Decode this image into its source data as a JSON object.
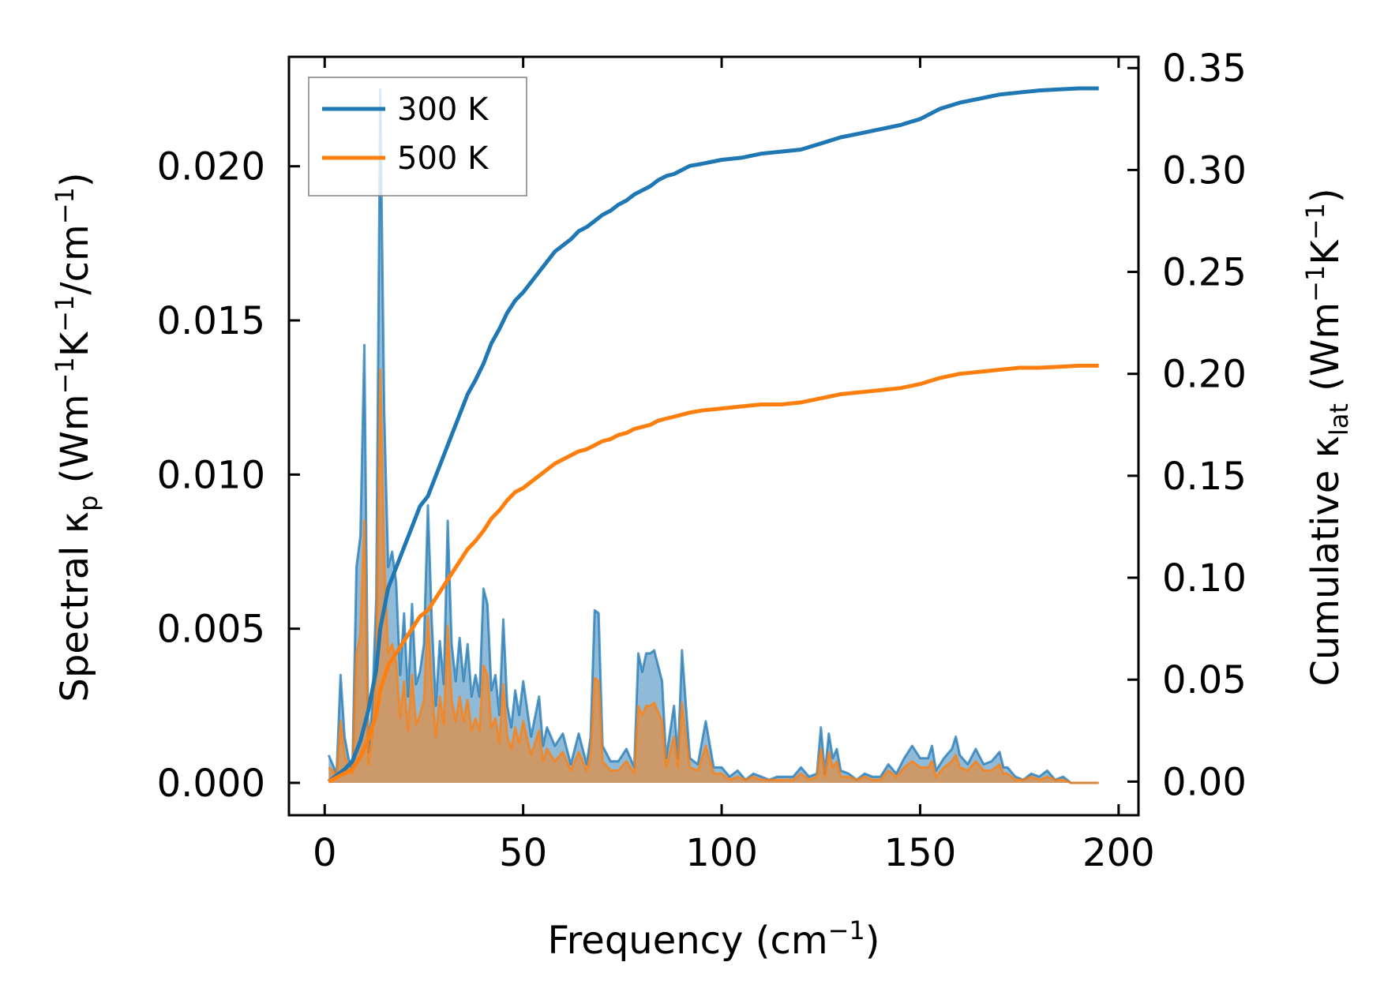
{
  "chart_data": {
    "type": "area",
    "title": "",
    "xlabel": "Frequency (cm",
    "xlabel_sup": "−1",
    "xlabel_end": ")",
    "ylabel_left": {
      "main": "Spectral κ",
      "sub": "p",
      "units_open": " (Wm",
      "sup1": "−1",
      "mid": "K",
      "sup2": "−1",
      "mid2": "/cm",
      "sup3": "−1",
      "close": ")"
    },
    "ylabel_right": {
      "main": "Cumulative κ",
      "sub": "lat",
      "units_open": " (Wm",
      "sup1": "−1",
      "mid": "K",
      "sup2": "−1",
      "close": ")"
    },
    "xlim": [
      -9,
      205
    ],
    "ylim_left": [
      -0.00105,
      0.02355
    ],
    "ylim_right": [
      -0.0165,
      0.3555
    ],
    "x_ticks": [
      0,
      50,
      100,
      150,
      200
    ],
    "x_tick_labels": [
      "0",
      "50",
      "100",
      "150",
      "200"
    ],
    "y_left_ticks": [
      0.0,
      0.005,
      0.01,
      0.015,
      0.02
    ],
    "y_left_tick_labels": [
      "0.000",
      "0.005",
      "0.010",
      "0.015",
      "0.020"
    ],
    "y_right_ticks": [
      0.0,
      0.05,
      0.1,
      0.15,
      0.2,
      0.25,
      0.3,
      0.35
    ],
    "y_right_tick_labels": [
      "0.00",
      "0.05",
      "0.10",
      "0.15",
      "0.20",
      "0.25",
      "0.30",
      "0.35"
    ],
    "grid": false,
    "legend_position": "top-left",
    "series": [
      {
        "name": "300 K",
        "color": "#1f77b4",
        "fill_color": "#1f77b4",
        "spectral": {
          "x": [
            1,
            2,
            3,
            4,
            5,
            6,
            7,
            8,
            9,
            10,
            11,
            12,
            13,
            14,
            15,
            16,
            17,
            18,
            19,
            20,
            21,
            22,
            23,
            24,
            25,
            26,
            27,
            28,
            29,
            30,
            31,
            32,
            33,
            34,
            35,
            36,
            37,
            38,
            39,
            40,
            41,
            42,
            43,
            44,
            45,
            46,
            47,
            48,
            49,
            50,
            52,
            54,
            55,
            56,
            58,
            60,
            62,
            64,
            66,
            67,
            68,
            69,
            70,
            72,
            74,
            76,
            78,
            79,
            80,
            81,
            82,
            83,
            84,
            85,
            86,
            88,
            89,
            90,
            91,
            92,
            94,
            96,
            98,
            100,
            102,
            104,
            106,
            108,
            110,
            112,
            114,
            116,
            118,
            120,
            122,
            124,
            125,
            126,
            127,
            128,
            129,
            130,
            132,
            134,
            136,
            138,
            140,
            142,
            144,
            146,
            148,
            150,
            152,
            153,
            154,
            156,
            158,
            159,
            160,
            162,
            164,
            166,
            168,
            170,
            171,
            172,
            174,
            176,
            178,
            180,
            182,
            184,
            186,
            188,
            190,
            192,
            195
          ],
          "y": [
            0.0009,
            0.0006,
            0.0003,
            0.0035,
            0.0015,
            0.0008,
            0.0004,
            0.007,
            0.008,
            0.0142,
            0.001,
            0.0025,
            0.006,
            0.0225,
            0.012,
            0.007,
            0.0075,
            0.0065,
            0.0035,
            0.0055,
            0.0028,
            0.0058,
            0.0032,
            0.0036,
            0.0045,
            0.009,
            0.0052,
            0.0025,
            0.0046,
            0.0032,
            0.0085,
            0.0045,
            0.0033,
            0.0047,
            0.0033,
            0.0045,
            0.0028,
            0.0035,
            0.0028,
            0.0063,
            0.0058,
            0.003,
            0.0035,
            0.0022,
            0.0053,
            0.0025,
            0.0018,
            0.003,
            0.0022,
            0.0033,
            0.0015,
            0.0028,
            0.0012,
            0.0018,
            0.0012,
            0.0016,
            0.0006,
            0.0016,
            0.0006,
            0.0015,
            0.0056,
            0.0055,
            0.0012,
            0.0007,
            0.0007,
            0.0011,
            0.0005,
            0.0042,
            0.0036,
            0.0042,
            0.0042,
            0.0043,
            0.0038,
            0.0033,
            0.0008,
            0.0025,
            0.0008,
            0.0043,
            0.0025,
            0.0008,
            0.0006,
            0.002,
            0.0005,
            0.0005,
            0.0002,
            0.0004,
            0.0001,
            0.0003,
            0.0002,
            0.0001,
            0.0002,
            0.0002,
            0.0002,
            0.0005,
            0.0002,
            0.0003,
            0.0018,
            0.0003,
            0.0016,
            0.0008,
            0.0011,
            0.0004,
            0.0003,
            0.0001,
            0.0003,
            0.0002,
            0.0002,
            0.0006,
            0.0003,
            0.0008,
            0.0012,
            0.0008,
            0.0008,
            0.0012,
            0.0004,
            0.0008,
            0.0011,
            0.0015,
            0.0009,
            0.0006,
            0.0011,
            0.0006,
            0.0007,
            0.001,
            0.0005,
            0.0005,
            0.0002,
            0.0001,
            0.0003,
            0.0002,
            0.0004,
            0.0001,
            0.0002,
            0.0,
            0.0,
            0.0,
            0.0
          ]
        },
        "cumulative": {
          "x": [
            1,
            3,
            5,
            7,
            9,
            11,
            12,
            13,
            14,
            15,
            16,
            18,
            20,
            22,
            24,
            26,
            28,
            30,
            32,
            34,
            36,
            38,
            40,
            42,
            44,
            46,
            48,
            50,
            52,
            54,
            56,
            58,
            60,
            62,
            64,
            66,
            68,
            70,
            72,
            74,
            76,
            78,
            80,
            82,
            84,
            86,
            88,
            90,
            92,
            95,
            100,
            105,
            110,
            115,
            120,
            125,
            130,
            135,
            140,
            145,
            150,
            155,
            160,
            165,
            170,
            175,
            180,
            185,
            190,
            195
          ],
          "y": [
            0.0,
            0.003,
            0.006,
            0.01,
            0.02,
            0.035,
            0.045,
            0.055,
            0.075,
            0.085,
            0.095,
            0.105,
            0.115,
            0.125,
            0.135,
            0.14,
            0.15,
            0.16,
            0.17,
            0.18,
            0.19,
            0.197,
            0.205,
            0.215,
            0.222,
            0.23,
            0.236,
            0.24,
            0.245,
            0.25,
            0.255,
            0.26,
            0.263,
            0.266,
            0.27,
            0.272,
            0.275,
            0.278,
            0.28,
            0.283,
            0.285,
            0.288,
            0.29,
            0.292,
            0.295,
            0.297,
            0.298,
            0.3,
            0.302,
            0.303,
            0.305,
            0.306,
            0.308,
            0.309,
            0.31,
            0.313,
            0.316,
            0.318,
            0.32,
            0.322,
            0.325,
            0.33,
            0.333,
            0.335,
            0.337,
            0.338,
            0.339,
            0.3395,
            0.34,
            0.34
          ]
        }
      },
      {
        "name": "500 K",
        "color": "#ff7f0e",
        "fill_color": "#ff7f0e",
        "spectral": {
          "x": [
            1,
            2,
            3,
            4,
            5,
            6,
            7,
            8,
            9,
            10,
            11,
            12,
            13,
            14,
            15,
            16,
            17,
            18,
            19,
            20,
            21,
            22,
            23,
            24,
            25,
            26,
            27,
            28,
            29,
            30,
            31,
            32,
            33,
            34,
            35,
            36,
            37,
            38,
            39,
            40,
            41,
            42,
            43,
            44,
            45,
            46,
            47,
            48,
            49,
            50,
            52,
            54,
            55,
            56,
            58,
            60,
            62,
            64,
            66,
            67,
            68,
            69,
            70,
            72,
            74,
            76,
            78,
            79,
            80,
            81,
            82,
            83,
            84,
            85,
            86,
            88,
            89,
            90,
            91,
            92,
            94,
            96,
            98,
            100,
            102,
            104,
            106,
            108,
            110,
            112,
            114,
            116,
            118,
            120,
            122,
            124,
            125,
            126,
            127,
            128,
            129,
            130,
            132,
            134,
            136,
            138,
            140,
            142,
            144,
            146,
            148,
            150,
            152,
            153,
            154,
            156,
            158,
            159,
            160,
            162,
            164,
            166,
            168,
            170,
            171,
            172,
            174,
            176,
            178,
            180,
            182,
            184,
            186,
            188,
            190,
            192,
            195
          ],
          "y": [
            0.0005,
            0.0004,
            0.0002,
            0.002,
            0.0009,
            0.0005,
            0.0003,
            0.0042,
            0.0048,
            0.0085,
            0.0006,
            0.0015,
            0.0036,
            0.0134,
            0.0072,
            0.0042,
            0.0045,
            0.0039,
            0.0021,
            0.0033,
            0.0017,
            0.0035,
            0.0019,
            0.0022,
            0.0027,
            0.0054,
            0.0031,
            0.0015,
            0.0028,
            0.0019,
            0.0051,
            0.0027,
            0.002,
            0.0028,
            0.002,
            0.0027,
            0.0017,
            0.0021,
            0.0017,
            0.0038,
            0.0035,
            0.0018,
            0.0021,
            0.0013,
            0.0032,
            0.0015,
            0.0011,
            0.0018,
            0.0013,
            0.002,
            0.0009,
            0.0017,
            0.0007,
            0.0011,
            0.0007,
            0.001,
            0.0004,
            0.001,
            0.0004,
            0.0009,
            0.0034,
            0.0033,
            0.0007,
            0.0004,
            0.0004,
            0.0007,
            0.0003,
            0.0025,
            0.0022,
            0.0025,
            0.0025,
            0.0026,
            0.0023,
            0.002,
            0.0005,
            0.0015,
            0.0005,
            0.0026,
            0.0015,
            0.0005,
            0.0004,
            0.0012,
            0.0003,
            0.0003,
            0.0001,
            0.0002,
            0.0001,
            0.0002,
            0.0001,
            0.0001,
            0.0001,
            0.0001,
            0.0001,
            0.0003,
            0.0001,
            0.0002,
            0.0011,
            0.0002,
            0.001,
            0.0005,
            0.0007,
            0.0002,
            0.0002,
            0.0001,
            0.0002,
            0.0001,
            0.0001,
            0.0004,
            0.0002,
            0.0005,
            0.0007,
            0.0005,
            0.0005,
            0.0007,
            0.0002,
            0.0005,
            0.0007,
            0.0009,
            0.0005,
            0.0004,
            0.0007,
            0.0004,
            0.0004,
            0.0006,
            0.0003,
            0.0003,
            0.0001,
            0.0001,
            0.0002,
            0.0001,
            0.0002,
            0.0001,
            0.0001,
            0.0,
            0.0,
            0.0,
            0.0
          ]
        },
        "cumulative": {
          "x": [
            1,
            3,
            5,
            7,
            9,
            11,
            12,
            13,
            14,
            15,
            16,
            18,
            20,
            22,
            24,
            26,
            28,
            30,
            32,
            34,
            36,
            38,
            40,
            42,
            44,
            46,
            48,
            50,
            52,
            54,
            56,
            58,
            60,
            62,
            64,
            66,
            68,
            70,
            72,
            74,
            76,
            78,
            80,
            82,
            84,
            86,
            88,
            90,
            92,
            95,
            100,
            105,
            110,
            115,
            120,
            125,
            130,
            135,
            140,
            145,
            150,
            155,
            160,
            165,
            170,
            175,
            180,
            185,
            190,
            195
          ],
          "y": [
            0.0,
            0.002,
            0.004,
            0.006,
            0.012,
            0.021,
            0.027,
            0.033,
            0.045,
            0.051,
            0.057,
            0.063,
            0.069,
            0.075,
            0.081,
            0.084,
            0.09,
            0.096,
            0.102,
            0.108,
            0.114,
            0.118,
            0.123,
            0.129,
            0.133,
            0.138,
            0.142,
            0.144,
            0.147,
            0.15,
            0.153,
            0.156,
            0.158,
            0.16,
            0.162,
            0.163,
            0.165,
            0.167,
            0.168,
            0.17,
            0.171,
            0.173,
            0.174,
            0.175,
            0.177,
            0.178,
            0.179,
            0.18,
            0.181,
            0.182,
            0.183,
            0.184,
            0.185,
            0.185,
            0.186,
            0.188,
            0.19,
            0.191,
            0.192,
            0.193,
            0.195,
            0.198,
            0.2,
            0.201,
            0.202,
            0.203,
            0.203,
            0.2035,
            0.204,
            0.204
          ]
        }
      }
    ]
  }
}
